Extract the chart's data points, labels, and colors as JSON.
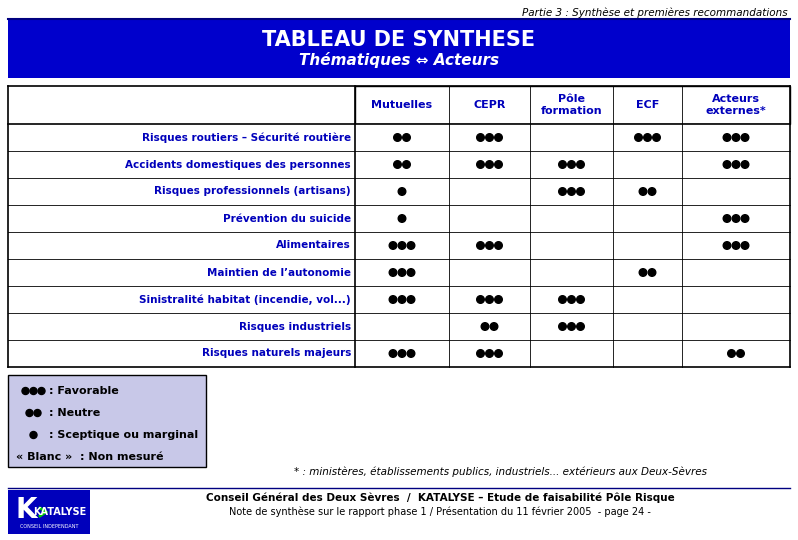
{
  "title_line1": "TABLEAU DE SYNTHESE",
  "title_line2": "Thématiques ⇔ Acteurs",
  "header_bg": "#0000CC",
  "header_text_color": "#FFFFFF",
  "top_label": "Partie 3 : Synthèse et premières recommandations",
  "columns": [
    "Mutuelles",
    "CEPR",
    "Pôle\nformation",
    "ECF",
    "Acteurs\nexternes*"
  ],
  "rows": [
    "Risques routiers – Sécurité routière",
    "Accidents domestiques des personnes",
    "Risques professionnels (artisans)",
    "Prévention du suicide",
    "Alimentaires",
    "Maintien de l’autonomie",
    "Sinistralité habitat (incendie, vol...)",
    "Risques industriels",
    "Risques naturels majeurs"
  ],
  "cells": [
    [
      2,
      3,
      0,
      3,
      3
    ],
    [
      2,
      3,
      3,
      0,
      3
    ],
    [
      1,
      0,
      3,
      2,
      0
    ],
    [
      1,
      0,
      0,
      0,
      3
    ],
    [
      3,
      3,
      0,
      0,
      3
    ],
    [
      3,
      0,
      0,
      2,
      0
    ],
    [
      3,
      3,
      3,
      0,
      0
    ],
    [
      0,
      2,
      3,
      0,
      0
    ],
    [
      3,
      3,
      0,
      0,
      2
    ]
  ],
  "dot_color": "#000000",
  "footnote": "* : ministères, établissements publics, industriels... extérieurs aux Deux-Sèvres",
  "footer_text1": "Conseil Général des Deux Sèvres  /  KATALYSE – Etude de faisabilité Pôle Risque",
  "footer_text2": "Note de synthèse sur le rapport phase 1 / Présentation du 11 février 2005  - page 24 -",
  "bg_color": "#FFFFFF",
  "row_label_color": "#0000BB",
  "col_header_color": "#0000BB",
  "legend_bg": "#C8C8E8",
  "legend_border": "#000000",
  "top_rule_color": "#000080",
  "footer_rule_color": "#000080"
}
